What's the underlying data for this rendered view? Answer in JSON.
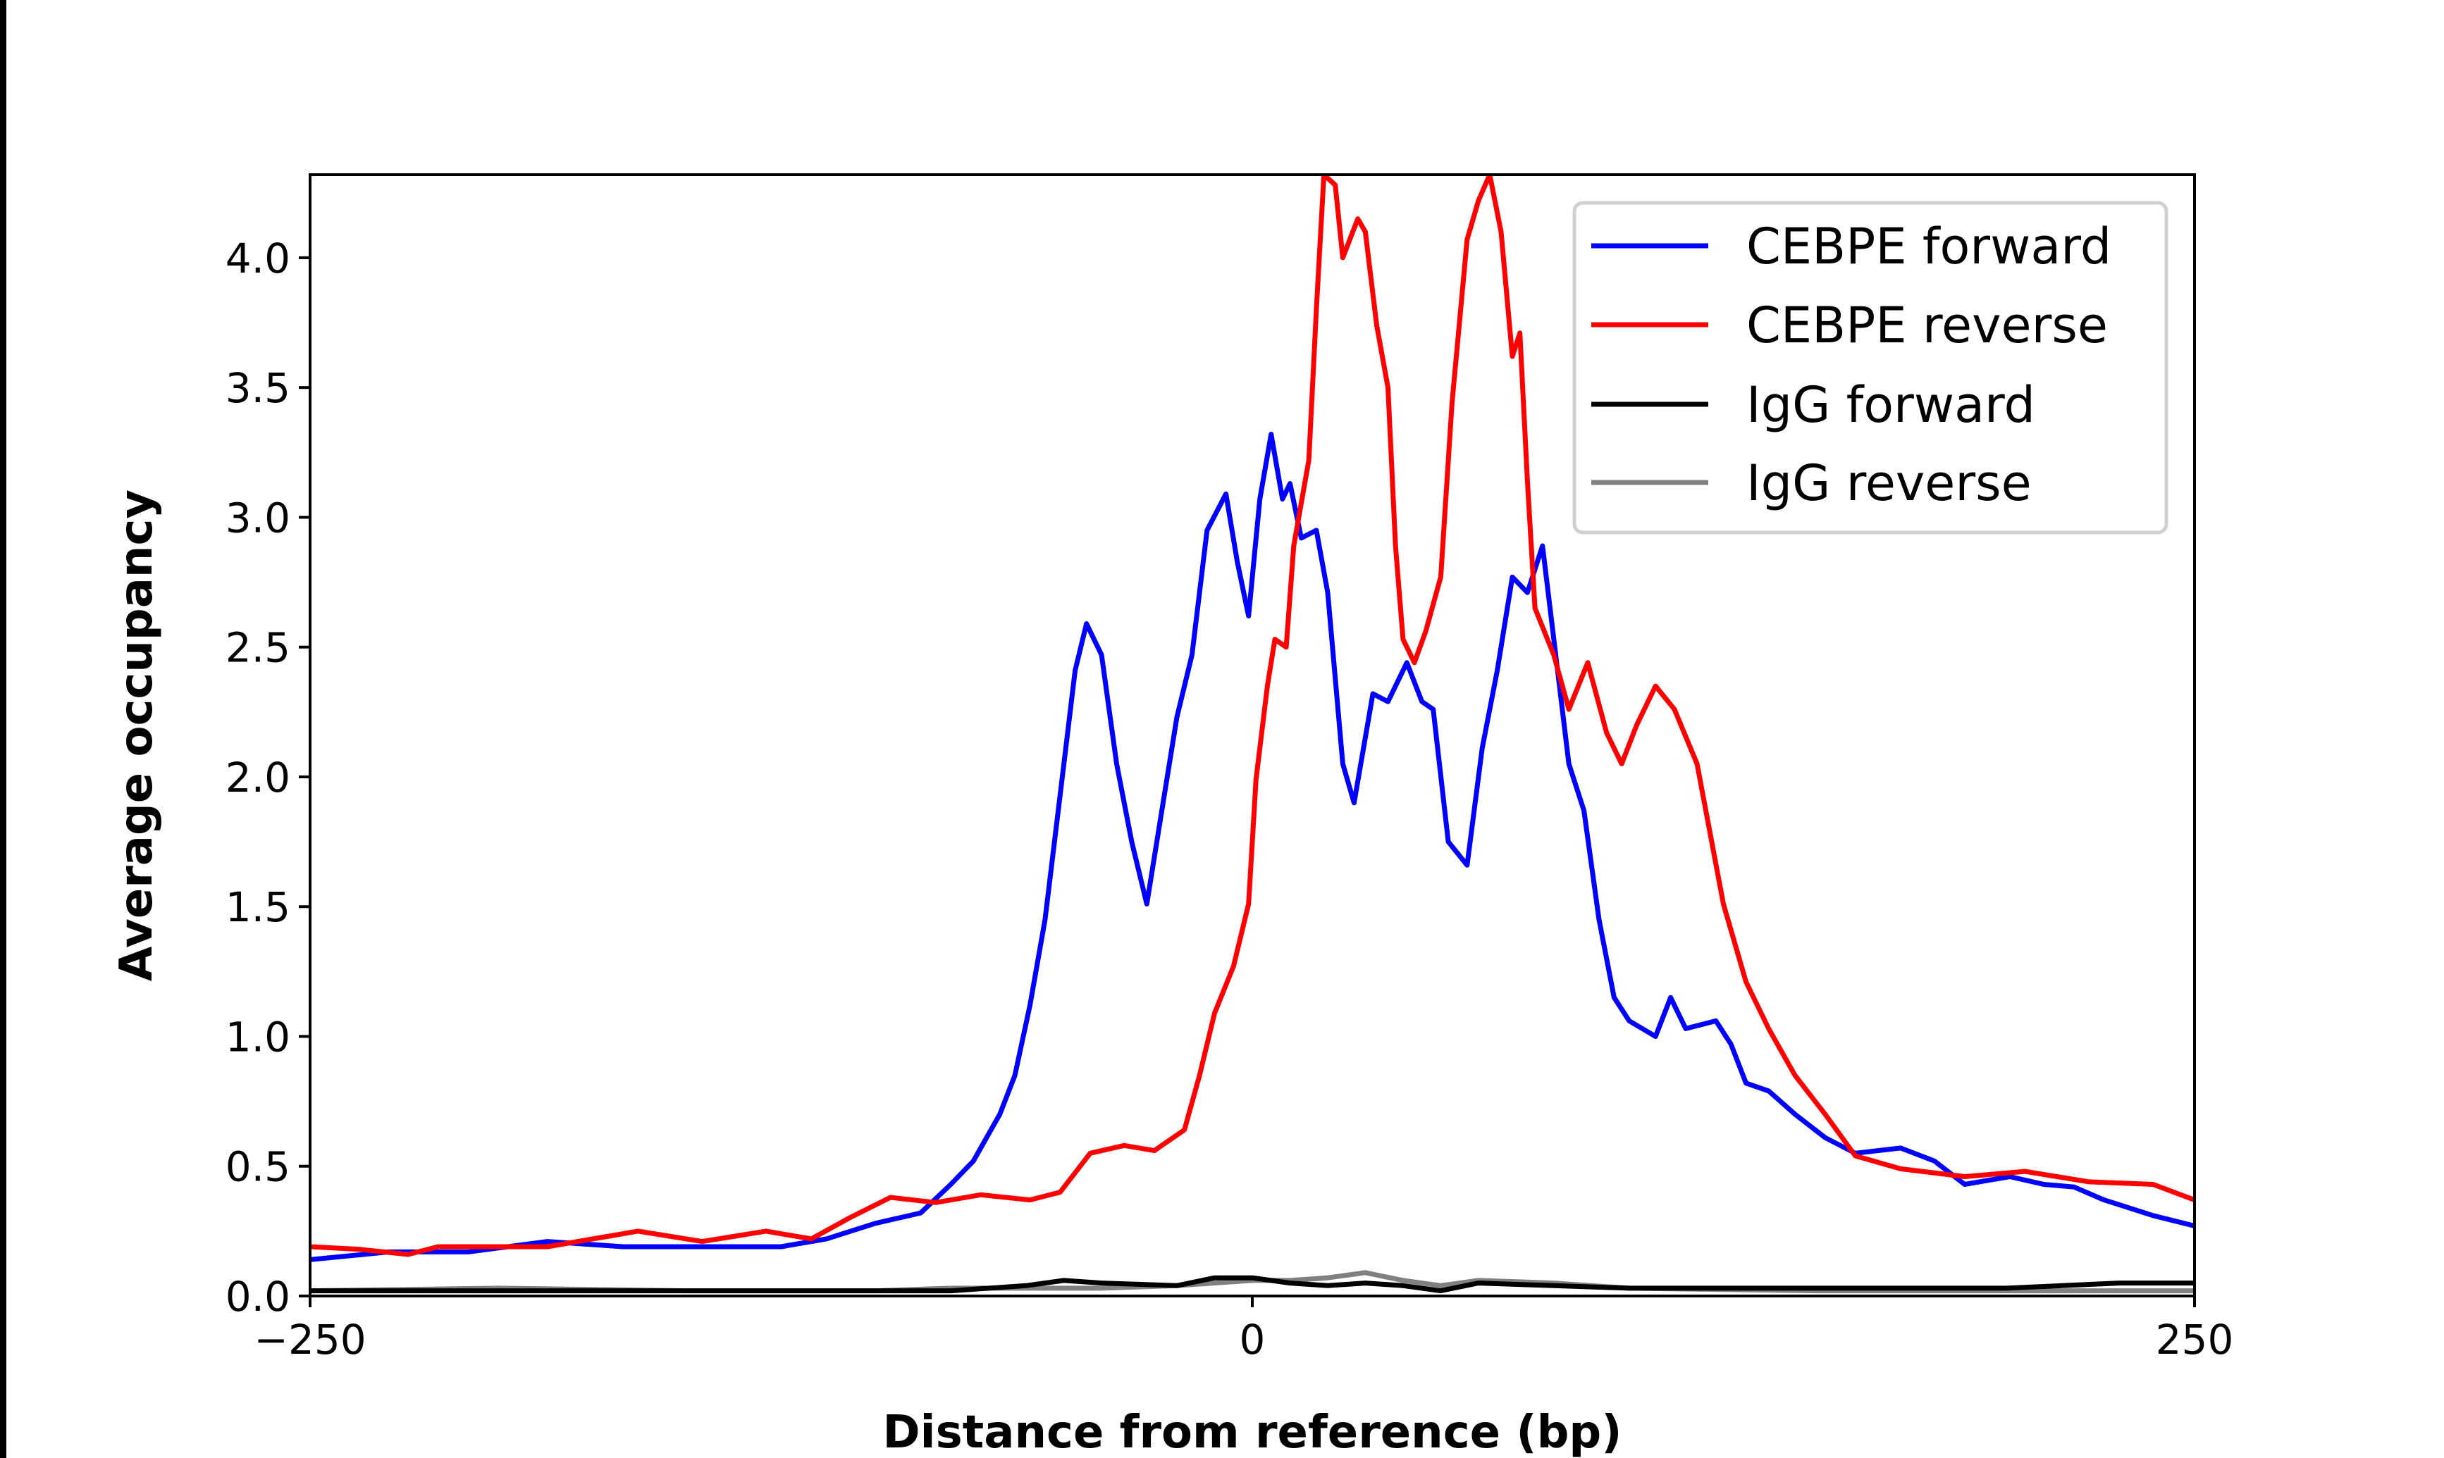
{
  "chart_data": {
    "type": "line",
    "title": "",
    "xlabel": "Distance from reference (bp)",
    "ylabel": "Average occupancy",
    "xlim": [
      -250,
      250
    ],
    "ylim": [
      0,
      4.32
    ],
    "xticks": [
      {
        "value": -250,
        "label": "−250"
      },
      {
        "value": 0,
        "label": "0"
      },
      {
        "value": 250,
        "label": "250"
      }
    ],
    "yticks": [
      {
        "value": 0,
        "label": "0.0"
      },
      {
        "value": 0.5,
        "label": "0.5"
      },
      {
        "value": 1,
        "label": "1.0"
      },
      {
        "value": 1.5,
        "label": "1.5"
      },
      {
        "value": 2,
        "label": "2.0"
      },
      {
        "value": 2.5,
        "label": "2.5"
      },
      {
        "value": 3,
        "label": "3.0"
      },
      {
        "value": 3.5,
        "label": "3.5"
      },
      {
        "value": 4,
        "label": "4.0"
      }
    ],
    "grid": false,
    "legend_position": "top-right",
    "series": [
      {
        "name": "CEBPE forward",
        "color": "#0000ff",
        "x": [
          -250,
          -229,
          -208,
          -187,
          -167,
          -146,
          -125,
          -113,
          -100,
          -88,
          -80,
          -74,
          -67,
          -63,
          -59,
          -55,
          -51,
          -47,
          -44,
          -40,
          -36,
          -32,
          -28,
          -24,
          -20,
          -16,
          -12,
          -7,
          -4,
          -1,
          2,
          5,
          8,
          10,
          13,
          17,
          20,
          24,
          27,
          32,
          36,
          41,
          45,
          48,
          52,
          57,
          61,
          65,
          69,
          73,
          77,
          81,
          84,
          88,
          92,
          96,
          100,
          107,
          111,
          115,
          123,
          127,
          131,
          137,
          144,
          152,
          160,
          172,
          181,
          189,
          201,
          210,
          218,
          226,
          239,
          250
        ],
        "y": [
          0.14,
          0.17,
          0.17,
          0.21,
          0.19,
          0.19,
          0.19,
          0.22,
          0.28,
          0.32,
          0.43,
          0.52,
          0.7,
          0.85,
          1.12,
          1.45,
          1.93,
          2.41,
          2.59,
          2.47,
          2.05,
          1.75,
          1.51,
          1.87,
          2.23,
          2.47,
          2.95,
          3.09,
          2.83,
          2.62,
          3.07,
          3.32,
          3.07,
          3.13,
          2.92,
          2.95,
          2.71,
          2.05,
          1.9,
          2.32,
          2.29,
          2.44,
          2.29,
          2.26,
          1.75,
          1.66,
          2.11,
          2.41,
          2.77,
          2.71,
          2.89,
          2.41,
          2.05,
          1.87,
          1.45,
          1.15,
          1.06,
          1.0,
          1.15,
          1.03,
          1.06,
          0.97,
          0.82,
          0.79,
          0.7,
          0.61,
          0.55,
          0.57,
          0.52,
          0.43,
          0.46,
          0.43,
          0.42,
          0.37,
          0.31,
          0.27
        ]
      },
      {
        "name": "CEBPE reverse",
        "color": "#ff0000",
        "x": [
          -250,
          -237,
          -224,
          -216,
          -200,
          -187,
          -163,
          -146,
          -129,
          -117,
          -107,
          -96,
          -84,
          -72,
          -59,
          -51,
          -43,
          -34,
          -26,
          -18,
          -14,
          -10,
          -5,
          -1,
          1,
          4,
          6,
          9,
          11,
          15,
          17,
          19,
          22,
          24,
          28,
          30,
          33,
          36,
          38,
          40,
          43,
          46,
          50,
          53,
          57,
          60,
          63,
          66,
          69,
          71,
          73,
          75,
          80,
          84,
          89,
          94,
          98,
          102,
          107,
          112,
          118,
          125,
          131,
          137,
          144,
          152,
          160,
          172,
          189,
          205,
          222,
          239,
          250
        ],
        "y": [
          0.19,
          0.18,
          0.16,
          0.19,
          0.19,
          0.19,
          0.25,
          0.21,
          0.25,
          0.22,
          0.3,
          0.38,
          0.36,
          0.39,
          0.37,
          0.4,
          0.55,
          0.58,
          0.56,
          0.64,
          0.85,
          1.09,
          1.27,
          1.51,
          1.99,
          2.35,
          2.53,
          2.5,
          2.89,
          3.22,
          3.8,
          4.32,
          4.28,
          4.0,
          4.15,
          4.1,
          3.74,
          3.5,
          2.89,
          2.53,
          2.44,
          2.56,
          2.77,
          3.44,
          4.07,
          4.22,
          4.32,
          4.1,
          3.62,
          3.71,
          3.14,
          2.65,
          2.47,
          2.26,
          2.44,
          2.17,
          2.05,
          2.2,
          2.35,
          2.26,
          2.05,
          1.51,
          1.21,
          1.03,
          0.85,
          0.7,
          0.54,
          0.49,
          0.46,
          0.48,
          0.44,
          0.43,
          0.37
        ]
      },
      {
        "name": "IgG forward",
        "color": "#000000",
        "x": [
          -250,
          -200,
          -150,
          -100,
          -80,
          -60,
          -50,
          -40,
          -20,
          -10,
          0,
          10,
          20,
          30,
          40,
          50,
          60,
          80,
          100,
          150,
          200,
          230,
          250
        ],
        "y": [
          0.02,
          0.02,
          0.02,
          0.02,
          0.02,
          0.04,
          0.06,
          0.05,
          0.04,
          0.07,
          0.07,
          0.05,
          0.04,
          0.05,
          0.04,
          0.02,
          0.05,
          0.04,
          0.03,
          0.03,
          0.03,
          0.05,
          0.05
        ]
      },
      {
        "name": "IgG reverse",
        "color": "#808080",
        "x": [
          -250,
          -200,
          -150,
          -100,
          -80,
          -60,
          -40,
          -20,
          0,
          10,
          20,
          30,
          40,
          50,
          60,
          80,
          100,
          150,
          200,
          250
        ],
        "y": [
          0.02,
          0.03,
          0.02,
          0.02,
          0.03,
          0.03,
          0.03,
          0.04,
          0.06,
          0.06,
          0.07,
          0.09,
          0.06,
          0.04,
          0.06,
          0.05,
          0.03,
          0.02,
          0.02,
          0.02
        ]
      }
    ]
  }
}
